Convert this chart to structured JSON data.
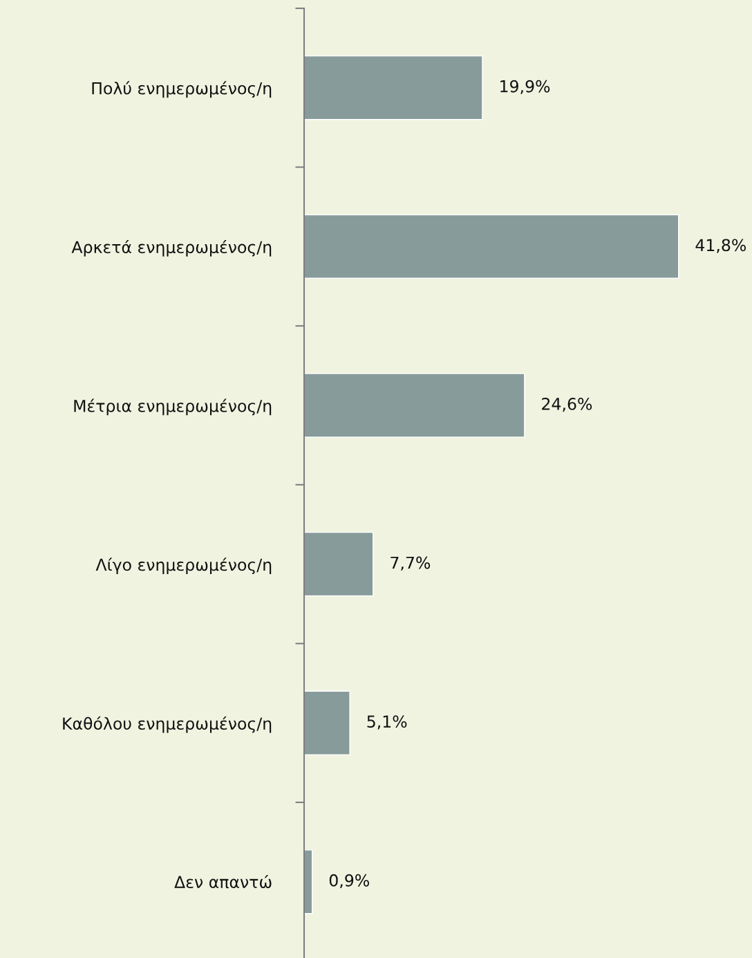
{
  "chart_data": {
    "type": "bar",
    "orientation": "horizontal",
    "categories": [
      "Πολύ ενημερωμένος/η",
      "Αρκετά ενημερωμένος/η",
      "Μέτρια ενημερωμένος/η",
      "Λίγο ενημερωμένος/η",
      "Καθόλου ενημερωμένος/η",
      "Δεν απαντώ"
    ],
    "values": [
      19.9,
      41.8,
      24.6,
      7.7,
      5.1,
      0.9
    ],
    "value_labels": [
      "19,9%",
      "41,8%",
      "24,6%",
      "7,7%",
      "5,1%",
      "0,9%"
    ],
    "color": "#889b9b",
    "xlim": [
      0,
      50
    ],
    "tick_labels": "y",
    "grid": false,
    "legend": false
  }
}
